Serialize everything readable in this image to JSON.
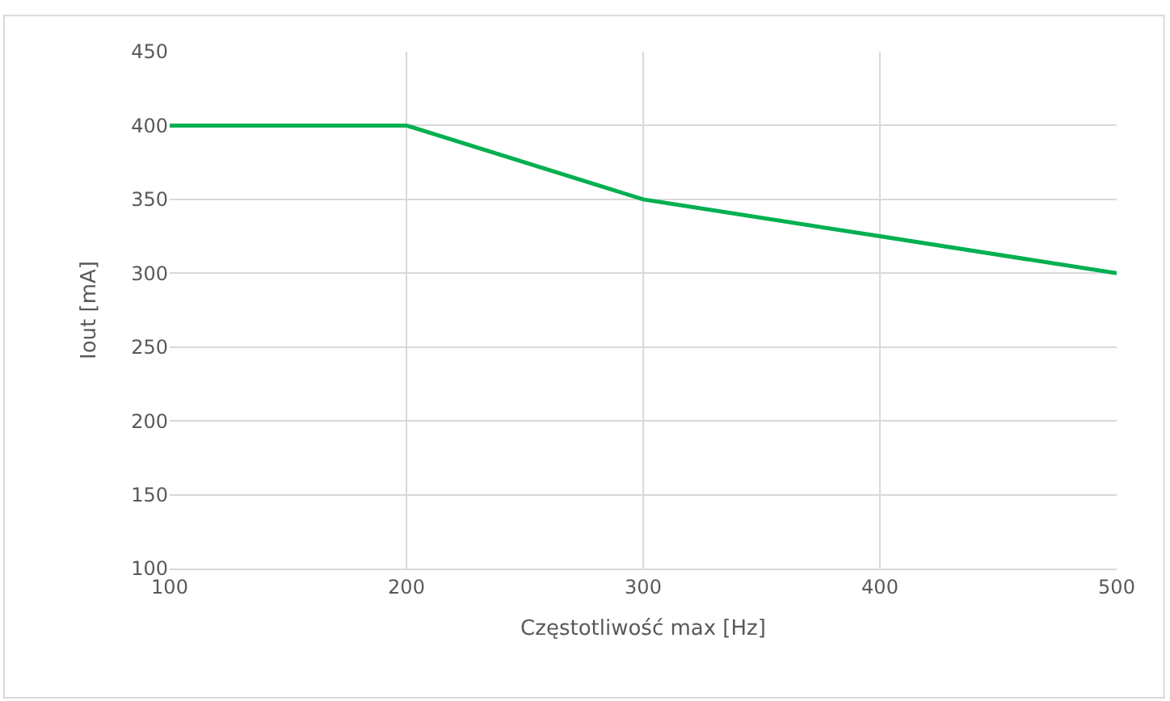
{
  "chart_data": {
    "type": "line",
    "xlabel": "Częstotliwość max [Hz]",
    "ylabel": "Iout [mA]",
    "x": [
      100,
      200,
      300,
      400,
      500
    ],
    "series": [
      {
        "color": "#00b050",
        "values": [
          400,
          400,
          350,
          325,
          300
        ]
      }
    ],
    "xlim": [
      100,
      500
    ],
    "xticks": [
      100,
      200,
      300,
      400,
      500
    ],
    "ylim": [
      100,
      450
    ],
    "yticks": [
      100,
      150,
      200,
      250,
      300,
      350,
      400,
      450
    ],
    "grid": true,
    "legend": false,
    "marker": "none",
    "line_style": "solid"
  }
}
